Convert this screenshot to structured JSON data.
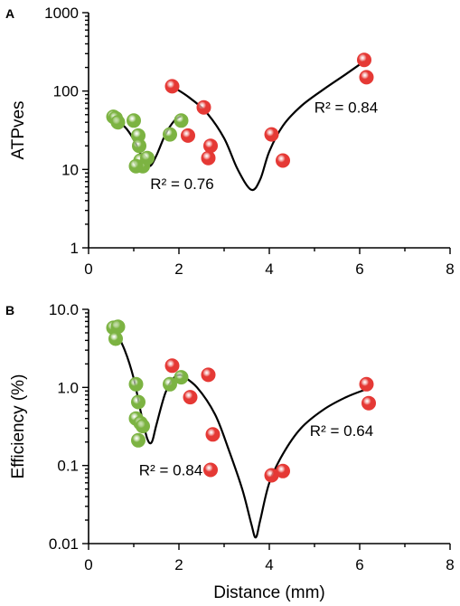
{
  "chart_data": [
    {
      "type": "scatter",
      "panel_label": "A",
      "ylabel": "ATPves",
      "xlabel": "",
      "yscale": "log",
      "xlim": [
        0,
        8
      ],
      "ylim": [
        1,
        1000
      ],
      "xticks": [
        "0",
        "2",
        "4",
        "6",
        "8"
      ],
      "yticks": [
        "1",
        "10",
        "100",
        "1000"
      ],
      "series": [
        {
          "color": "#7cb342",
          "x": [
            0.55,
            0.6,
            0.65,
            1.0,
            1.1,
            1.12,
            1.15,
            1.2,
            1.05,
            1.3,
            1.8,
            2.05
          ],
          "y": [
            47,
            45,
            40,
            42,
            27,
            20,
            13,
            11,
            11,
            14,
            28,
            42
          ]
        },
        {
          "color": "#e53935",
          "x": [
            1.85,
            2.2,
            2.55,
            2.65,
            2.7,
            4.05,
            4.3,
            6.1,
            6.15
          ],
          "y": [
            115,
            27,
            62,
            14,
            20,
            28,
            13,
            250,
            150
          ]
        }
      ],
      "fits": [
        {
          "x": [
            0.55,
            0.8,
            1.0,
            1.2,
            1.35,
            1.5,
            1.7,
            1.9,
            2.05
          ],
          "y": [
            44,
            35,
            24,
            14,
            11,
            15,
            28,
            42,
            48
          ]
        },
        {
          "x": [
            1.9,
            2.2,
            2.6,
            3.0,
            3.3,
            3.6,
            3.8,
            4.0,
            4.3,
            4.7,
            5.2,
            5.7,
            6.1
          ],
          "y": [
            110,
            85,
            54,
            25,
            10,
            5.5,
            7.5,
            17,
            36,
            64,
            105,
            165,
            240
          ]
        }
      ],
      "annotations": [
        {
          "text": "R² = 0.76",
          "x": 2.07,
          "y": 6.6
        },
        {
          "text": "R² = 0.84",
          "x": 5.7,
          "y": 62
        }
      ]
    },
    {
      "type": "scatter",
      "panel_label": "B",
      "ylabel": "Efficiency (%)",
      "xlabel": "Distance (mm)",
      "yscale": "log",
      "xlim": [
        0,
        8
      ],
      "ylim": [
        0.01,
        10
      ],
      "xticks": [
        "0",
        "2",
        "4",
        "6",
        "8"
      ],
      "yticks": [
        "0.01",
        "0.1",
        "1.0",
        "10.0"
      ],
      "series": [
        {
          "color": "#7cb342",
          "x": [
            0.55,
            0.65,
            0.6,
            1.05,
            1.1,
            1.05,
            1.15,
            1.2,
            1.1,
            1.8,
            2.05
          ],
          "y": [
            5.8,
            6.0,
            4.2,
            1.1,
            0.65,
            0.4,
            0.35,
            0.32,
            0.21,
            1.1,
            1.35
          ]
        },
        {
          "color": "#e53935",
          "x": [
            1.85,
            2.25,
            2.65,
            2.75,
            2.7,
            4.05,
            4.3,
            6.15,
            6.2
          ],
          "y": [
            1.9,
            0.75,
            1.45,
            0.25,
            0.088,
            0.075,
            0.085,
            1.1,
            0.63
          ]
        }
      ],
      "fits": [
        {
          "x": [
            0.55,
            0.8,
            1.0,
            1.15,
            1.3,
            1.4,
            1.5,
            1.7,
            1.9,
            2.05
          ],
          "y": [
            6.0,
            3.0,
            1.3,
            0.5,
            0.22,
            0.2,
            0.33,
            0.85,
            1.35,
            1.45
          ]
        },
        {
          "x": [
            2.05,
            2.4,
            2.8,
            3.1,
            3.4,
            3.6,
            3.7,
            3.8,
            4.0,
            4.3,
            4.7,
            5.2,
            5.7,
            6.15
          ],
          "y": [
            1.45,
            1.0,
            0.45,
            0.16,
            0.05,
            0.018,
            0.012,
            0.02,
            0.06,
            0.14,
            0.3,
            0.52,
            0.75,
            0.95
          ]
        }
      ],
      "annotations": [
        {
          "text": "R² = 0.84",
          "x": 1.82,
          "y": 0.088
        },
        {
          "text": "R² = 0.64",
          "x": 5.6,
          "y": 0.28
        }
      ]
    }
  ]
}
